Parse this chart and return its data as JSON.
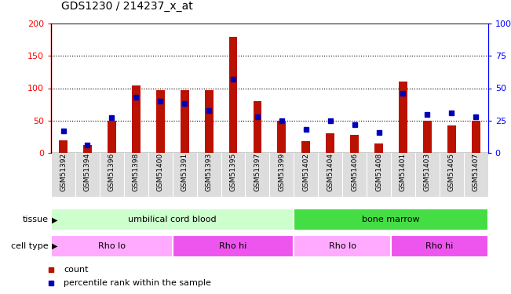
{
  "title": "GDS1230 / 214237_x_at",
  "samples": [
    "GSM51392",
    "GSM51394",
    "GSM51396",
    "GSM51398",
    "GSM51400",
    "GSM51391",
    "GSM51393",
    "GSM51395",
    "GSM51397",
    "GSM51399",
    "GSM51402",
    "GSM51404",
    "GSM51406",
    "GSM51408",
    "GSM51401",
    "GSM51403",
    "GSM51405",
    "GSM51407"
  ],
  "counts": [
    20,
    12,
    50,
    104,
    97,
    97,
    97,
    180,
    80,
    50,
    18,
    30,
    28,
    14,
    110,
    50,
    43,
    50
  ],
  "percentiles": [
    17,
    6,
    27,
    43,
    40,
    38,
    33,
    57,
    28,
    25,
    18,
    25,
    22,
    16,
    46,
    30,
    31,
    28
  ],
  "ylim_left": [
    0,
    200
  ],
  "ylim_right": [
    0,
    100
  ],
  "yticks_left": [
    0,
    50,
    100,
    150,
    200
  ],
  "yticks_right": [
    0,
    25,
    50,
    75,
    100
  ],
  "ytick_labels_right": [
    "0",
    "25",
    "50",
    "75",
    "100%"
  ],
  "bar_color": "#bb1100",
  "marker_color": "#0000bb",
  "plot_bg": "#ffffff",
  "xticklabel_bg": "#dddddd",
  "tissue_groups": [
    {
      "label": "umbilical cord blood",
      "start": 0,
      "end": 10,
      "color": "#ccffcc"
    },
    {
      "label": "bone marrow",
      "start": 10,
      "end": 18,
      "color": "#44dd44"
    }
  ],
  "cell_type_groups": [
    {
      "label": "Rho lo",
      "start": 0,
      "end": 5,
      "color": "#ffaaff"
    },
    {
      "label": "Rho hi",
      "start": 5,
      "end": 10,
      "color": "#ee55ee"
    },
    {
      "label": "Rho lo",
      "start": 10,
      "end": 14,
      "color": "#ffaaff"
    },
    {
      "label": "Rho hi",
      "start": 14,
      "end": 18,
      "color": "#ee55ee"
    }
  ],
  "legend_items": [
    {
      "label": "count",
      "color": "#bb1100"
    },
    {
      "label": "percentile rank within the sample",
      "color": "#0000bb"
    }
  ],
  "tissue_label": "tissue",
  "cell_type_label": "cell type",
  "bar_width": 0.35
}
